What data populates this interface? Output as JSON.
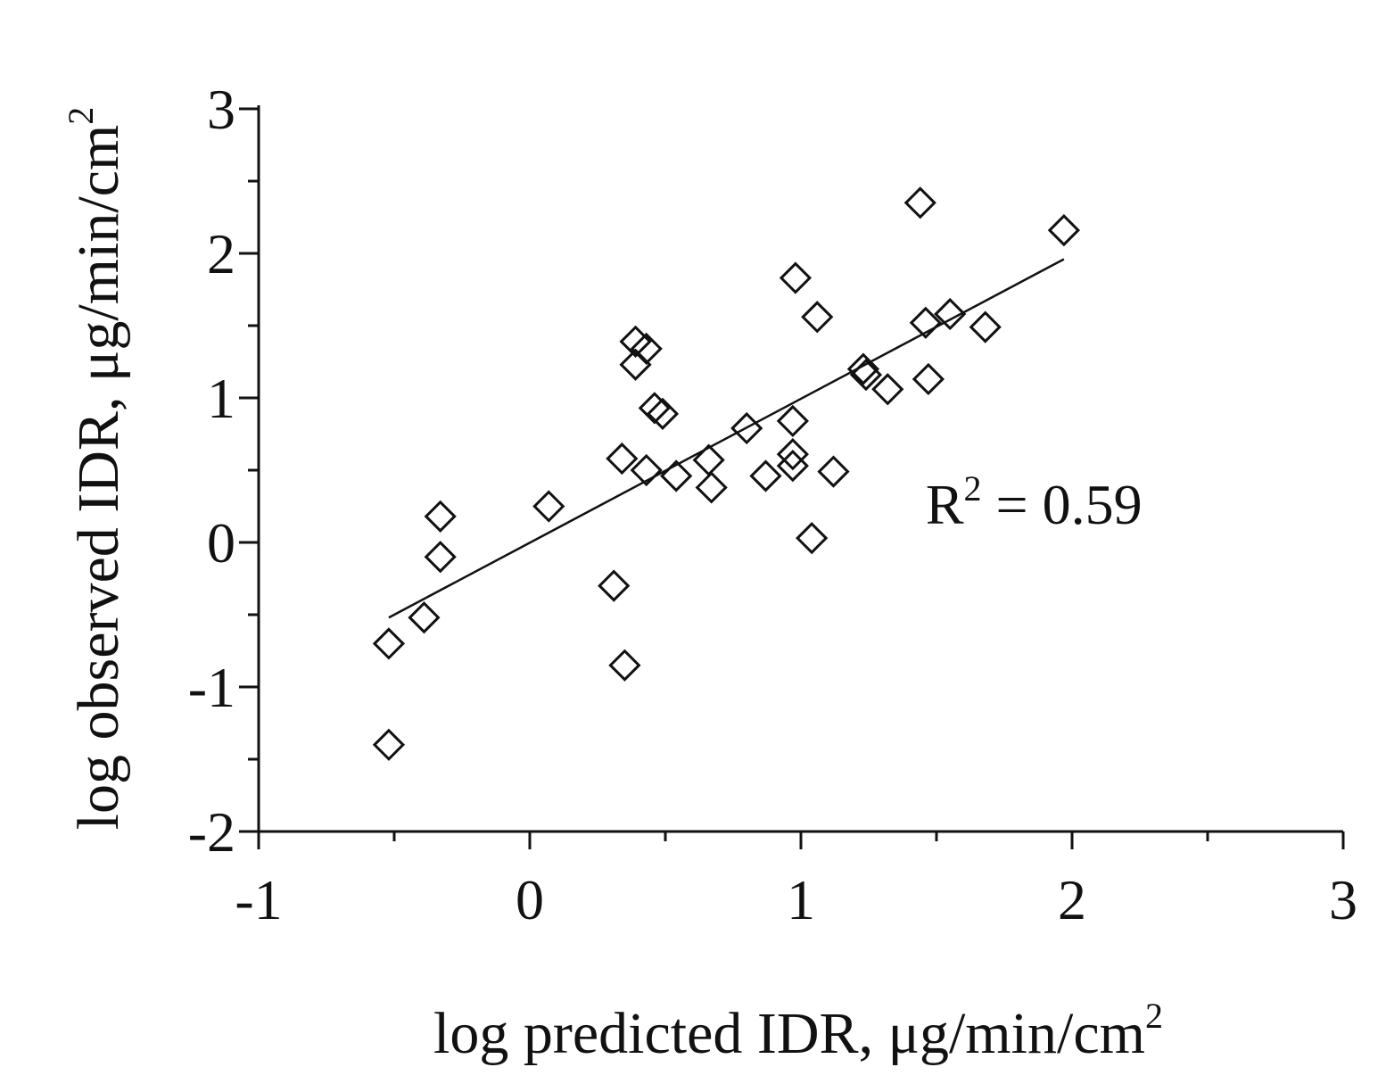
{
  "chart_data": {
    "type": "scatter",
    "title": "",
    "xlabel": "log predicted IDR, μg/min/cm",
    "xlabel_sup": "2",
    "ylabel": "log observed IDR, μg/min/cm",
    "ylabel_sup": "2",
    "xlim": [
      -1,
      3
    ],
    "ylim": [
      -2,
      3
    ],
    "x_ticks": [
      -1,
      0,
      1,
      2,
      3
    ],
    "y_ticks": [
      -2,
      -1,
      0,
      1,
      2,
      3
    ],
    "x_tick_labels": [
      "-1",
      "0",
      "1",
      "2",
      "3"
    ],
    "y_tick_labels": [
      "-2",
      "-1",
      "0",
      "1",
      "2",
      "3"
    ],
    "grid": false,
    "marker": "open-diamond",
    "points": [
      {
        "x": -0.52,
        "y": -0.7
      },
      {
        "x": -0.52,
        "y": -1.4
      },
      {
        "x": -0.39,
        "y": -0.52
      },
      {
        "x": -0.33,
        "y": 0.18
      },
      {
        "x": -0.33,
        "y": -0.1
      },
      {
        "x": 0.07,
        "y": 0.25
      },
      {
        "x": 0.31,
        "y": -0.3
      },
      {
        "x": 0.34,
        "y": 0.58
      },
      {
        "x": 0.35,
        "y": -0.85
      },
      {
        "x": 0.39,
        "y": 1.39
      },
      {
        "x": 0.39,
        "y": 1.23
      },
      {
        "x": 0.43,
        "y": 1.34
      },
      {
        "x": 0.43,
        "y": 0.5
      },
      {
        "x": 0.46,
        "y": 0.93
      },
      {
        "x": 0.49,
        "y": 0.89
      },
      {
        "x": 0.54,
        "y": 0.46
      },
      {
        "x": 0.66,
        "y": 0.57
      },
      {
        "x": 0.67,
        "y": 0.38
      },
      {
        "x": 0.8,
        "y": 0.79
      },
      {
        "x": 0.87,
        "y": 0.46
      },
      {
        "x": 0.97,
        "y": 0.84
      },
      {
        "x": 0.97,
        "y": 0.61
      },
      {
        "x": 0.97,
        "y": 0.53
      },
      {
        "x": 0.98,
        "y": 1.83
      },
      {
        "x": 1.04,
        "y": 0.03
      },
      {
        "x": 1.06,
        "y": 1.56
      },
      {
        "x": 1.12,
        "y": 0.49
      },
      {
        "x": 1.23,
        "y": 1.2
      },
      {
        "x": 1.24,
        "y": 1.16
      },
      {
        "x": 1.32,
        "y": 1.06
      },
      {
        "x": 1.44,
        "y": 2.35
      },
      {
        "x": 1.46,
        "y": 1.52
      },
      {
        "x": 1.47,
        "y": 1.13
      },
      {
        "x": 1.55,
        "y": 1.58
      },
      {
        "x": 1.68,
        "y": 1.49
      },
      {
        "x": 1.97,
        "y": 2.16
      }
    ],
    "fit_line": {
      "x": [
        -0.52,
        1.97
      ],
      "y": [
        -0.52,
        1.96
      ]
    },
    "annotation": {
      "text": "R",
      "sup": "2",
      "rest": " = 0.59",
      "x": 1.46,
      "y": 0.13
    }
  }
}
